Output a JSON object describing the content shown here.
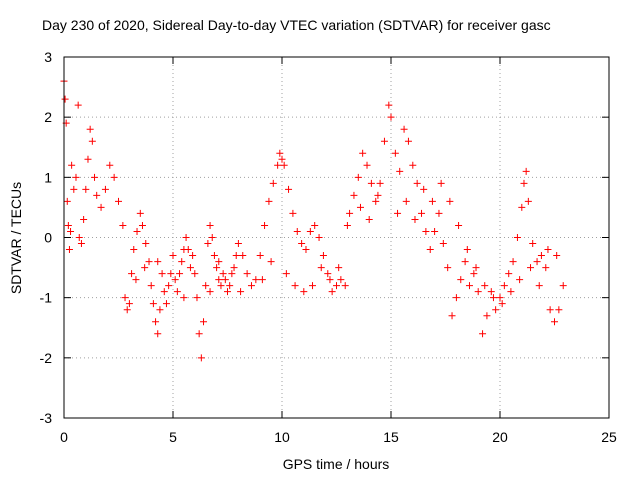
{
  "chart_data": {
    "type": "scatter",
    "title": "Day 230 of 2020, Sidereal Day-to-day VTEC variation (SDTVAR) for receiver gasc",
    "xlabel": "GPS time / hours",
    "ylabel": "SDTVAR / TECUs",
    "xlim": [
      0,
      25
    ],
    "ylim": [
      -3,
      3
    ],
    "xticks": [
      0,
      5,
      10,
      15,
      20,
      25
    ],
    "yticks": [
      -3,
      -2,
      -1,
      0,
      1,
      2,
      3
    ],
    "grid": true,
    "marker": "+",
    "series": [
      {
        "name": "SDTVAR",
        "color": "#ff0000",
        "points": [
          [
            0.0,
            2.6
          ],
          [
            0.05,
            2.3
          ],
          [
            0.1,
            1.9
          ],
          [
            0.15,
            0.6
          ],
          [
            0.2,
            0.2
          ],
          [
            0.25,
            -0.2
          ],
          [
            0.3,
            0.1
          ],
          [
            0.35,
            1.2
          ],
          [
            0.45,
            0.8
          ],
          [
            0.55,
            1.0
          ],
          [
            0.65,
            2.2
          ],
          [
            0.7,
            0.0
          ],
          [
            0.8,
            -0.1
          ],
          [
            0.9,
            0.3
          ],
          [
            1.0,
            0.8
          ],
          [
            1.1,
            1.3
          ],
          [
            1.2,
            1.8
          ],
          [
            1.3,
            1.6
          ],
          [
            1.4,
            1.0
          ],
          [
            1.5,
            0.7
          ],
          [
            1.7,
            0.5
          ],
          [
            1.9,
            0.8
          ],
          [
            2.1,
            1.2
          ],
          [
            2.3,
            1.0
          ],
          [
            2.5,
            0.6
          ],
          [
            2.7,
            0.2
          ],
          [
            2.8,
            -1.0
          ],
          [
            2.9,
            -1.2
          ],
          [
            3.0,
            -1.1
          ],
          [
            3.1,
            -0.6
          ],
          [
            3.2,
            -0.2
          ],
          [
            3.35,
            0.1
          ],
          [
            3.5,
            0.4
          ],
          [
            3.6,
            0.2
          ],
          [
            3.75,
            -0.1
          ],
          [
            3.9,
            -0.4
          ],
          [
            4.0,
            -0.8
          ],
          [
            4.1,
            -1.1
          ],
          [
            4.2,
            -1.4
          ],
          [
            4.3,
            -1.6
          ],
          [
            4.4,
            -1.2
          ],
          [
            4.5,
            -0.6
          ],
          [
            4.6,
            -0.9
          ],
          [
            4.7,
            -1.1
          ],
          [
            4.8,
            -0.8
          ],
          [
            4.9,
            -0.6
          ],
          [
            5.0,
            -0.3
          ],
          [
            5.1,
            -0.7
          ],
          [
            5.2,
            -0.9
          ],
          [
            5.3,
            -0.6
          ],
          [
            5.4,
            -0.4
          ],
          [
            5.5,
            -0.2
          ],
          [
            5.6,
            0.0
          ],
          [
            5.7,
            -0.2
          ],
          [
            5.8,
            -0.5
          ],
          [
            5.9,
            -0.3
          ],
          [
            6.0,
            -0.6
          ],
          [
            6.1,
            -1.0
          ],
          [
            6.2,
            -1.6
          ],
          [
            6.3,
            -2.0
          ],
          [
            6.4,
            -1.4
          ],
          [
            6.5,
            -0.8
          ],
          [
            6.6,
            -0.1
          ],
          [
            6.7,
            0.2
          ],
          [
            6.8,
            0.0
          ],
          [
            6.9,
            -0.3
          ],
          [
            7.0,
            -0.5
          ],
          [
            7.1,
            -0.7
          ],
          [
            7.2,
            -0.8
          ],
          [
            7.3,
            -0.6
          ],
          [
            7.4,
            -0.7
          ],
          [
            7.5,
            -0.9
          ],
          [
            7.6,
            -0.8
          ],
          [
            7.7,
            -0.6
          ],
          [
            7.8,
            -0.5
          ],
          [
            7.9,
            -0.3
          ],
          [
            8.0,
            -0.1
          ],
          [
            8.2,
            -0.3
          ],
          [
            8.4,
            -0.6
          ],
          [
            8.6,
            -0.8
          ],
          [
            8.8,
            -0.7
          ],
          [
            9.0,
            -0.3
          ],
          [
            9.2,
            0.2
          ],
          [
            9.4,
            0.6
          ],
          [
            9.6,
            0.9
          ],
          [
            9.8,
            1.2
          ],
          [
            9.9,
            1.4
          ],
          [
            10.0,
            1.3
          ],
          [
            10.1,
            1.2
          ],
          [
            10.3,
            0.8
          ],
          [
            10.5,
            0.4
          ],
          [
            10.7,
            0.1
          ],
          [
            10.9,
            -0.1
          ],
          [
            11.1,
            -0.2
          ],
          [
            11.3,
            0.1
          ],
          [
            11.5,
            0.2
          ],
          [
            11.7,
            0.0
          ],
          [
            11.9,
            -0.3
          ],
          [
            12.1,
            -0.6
          ],
          [
            12.3,
            -0.9
          ],
          [
            12.5,
            -0.8
          ],
          [
            12.7,
            -0.7
          ],
          [
            12.9,
            -0.8
          ],
          [
            13.1,
            0.4
          ],
          [
            13.3,
            0.7
          ],
          [
            13.5,
            1.0
          ],
          [
            13.7,
            1.4
          ],
          [
            13.9,
            1.2
          ],
          [
            14.1,
            0.9
          ],
          [
            14.3,
            0.6
          ],
          [
            14.5,
            0.9
          ],
          [
            14.7,
            1.6
          ],
          [
            14.9,
            2.2
          ],
          [
            15.0,
            2.0
          ],
          [
            15.2,
            1.4
          ],
          [
            15.4,
            1.1
          ],
          [
            15.6,
            1.8
          ],
          [
            15.8,
            1.6
          ],
          [
            16.0,
            1.2
          ],
          [
            16.2,
            0.9
          ],
          [
            16.4,
            0.4
          ],
          [
            16.6,
            0.1
          ],
          [
            16.8,
            -0.2
          ],
          [
            17.0,
            0.1
          ],
          [
            17.2,
            0.4
          ],
          [
            17.4,
            -0.1
          ],
          [
            17.6,
            -0.5
          ],
          [
            17.8,
            -1.3
          ],
          [
            18.0,
            -1.0
          ],
          [
            18.2,
            -0.7
          ],
          [
            18.4,
            -0.4
          ],
          [
            18.6,
            -0.8
          ],
          [
            18.8,
            -0.6
          ],
          [
            19.0,
            -0.9
          ],
          [
            19.2,
            -1.6
          ],
          [
            19.4,
            -1.3
          ],
          [
            19.6,
            -0.9
          ],
          [
            19.8,
            -1.2
          ],
          [
            20.0,
            -1.0
          ],
          [
            20.2,
            -0.8
          ],
          [
            20.4,
            -0.6
          ],
          [
            20.6,
            -0.4
          ],
          [
            20.8,
            0.0
          ],
          [
            21.0,
            0.5
          ],
          [
            21.1,
            0.9
          ],
          [
            21.2,
            1.1
          ],
          [
            21.3,
            0.6
          ],
          [
            21.5,
            -0.1
          ],
          [
            21.7,
            -0.4
          ],
          [
            21.9,
            -0.3
          ],
          [
            22.1,
            -0.5
          ],
          [
            22.3,
            -1.2
          ],
          [
            22.5,
            -1.4
          ],
          [
            22.7,
            -1.2
          ],
          [
            22.9,
            -0.8
          ],
          [
            13.0,
            0.2
          ],
          [
            13.6,
            0.5
          ],
          [
            14.0,
            0.3
          ],
          [
            14.4,
            0.7
          ],
          [
            15.3,
            0.4
          ],
          [
            15.7,
            0.6
          ],
          [
            16.1,
            0.3
          ],
          [
            16.5,
            0.8
          ],
          [
            16.9,
            0.6
          ],
          [
            17.3,
            0.9
          ],
          [
            17.7,
            0.6
          ],
          [
            18.1,
            0.2
          ],
          [
            18.5,
            -0.2
          ],
          [
            18.9,
            -0.5
          ],
          [
            19.3,
            -0.8
          ],
          [
            19.7,
            -1.0
          ],
          [
            20.1,
            -1.1
          ],
          [
            20.5,
            -0.9
          ],
          [
            20.9,
            -0.7
          ],
          [
            21.4,
            -0.5
          ],
          [
            21.8,
            -0.8
          ],
          [
            22.2,
            -0.2
          ],
          [
            22.6,
            -0.3
          ],
          [
            3.3,
            -0.7
          ],
          [
            3.7,
            -0.5
          ],
          [
            4.3,
            -0.4
          ],
          [
            5.5,
            -1.0
          ],
          [
            6.7,
            -0.9
          ],
          [
            7.1,
            -0.4
          ],
          [
            8.1,
            -0.9
          ],
          [
            9.1,
            -0.7
          ],
          [
            9.5,
            -0.4
          ],
          [
            10.2,
            -0.6
          ],
          [
            10.6,
            -0.8
          ],
          [
            11.0,
            -0.9
          ],
          [
            11.4,
            -0.8
          ],
          [
            11.8,
            -0.5
          ],
          [
            12.2,
            -0.7
          ],
          [
            12.6,
            -0.5
          ]
        ]
      }
    ]
  }
}
